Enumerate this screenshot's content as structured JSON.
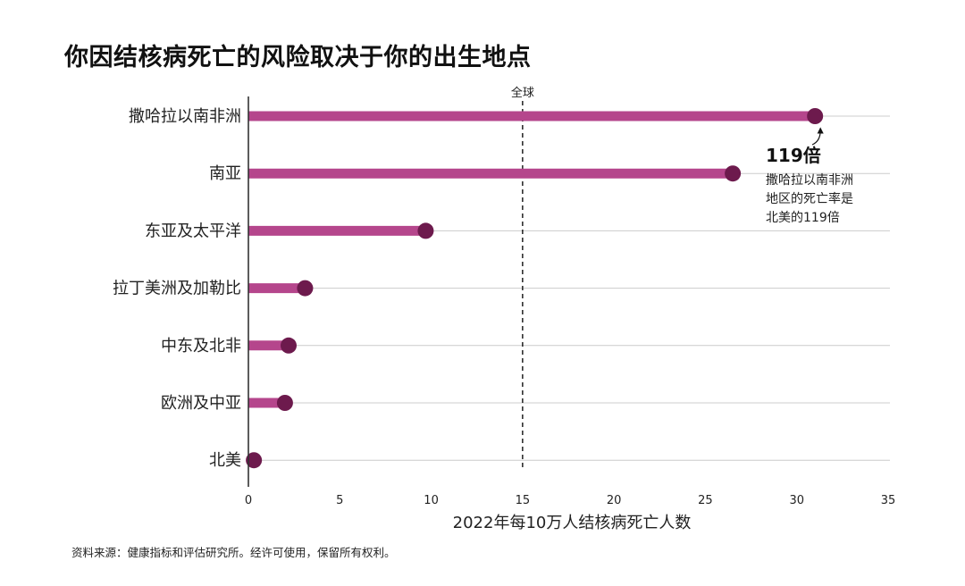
{
  "title": "你因结核病死亡的风险取决于你的出生地点",
  "source": "资料来源：健康指标和评估研究所。经许可使用，保留所有权利。",
  "colors": {
    "bar": "#b5468c",
    "dot": "#6d1a4d",
    "grid": "#cccccc",
    "axis": "#333333"
  },
  "chart_data": {
    "type": "bar",
    "orientation": "horizontal",
    "style": "lollipop",
    "categories": [
      "撒哈拉以南非洲",
      "南亚",
      "东亚及太平洋",
      "拉丁美洲及加勒比",
      "中东及北非",
      "欧洲及中亚",
      "北美"
    ],
    "values": [
      31,
      26.5,
      9.7,
      3.1,
      2.2,
      2.0,
      0.3
    ],
    "xlabel": "2022年每10万人结核病死亡人数",
    "xlim": [
      0,
      35
    ],
    "xticks": [
      0,
      5,
      10,
      15,
      20,
      25,
      30,
      35
    ],
    "grid": true,
    "reference_line": {
      "value": 15,
      "label": "全球"
    },
    "annotation": {
      "headline": "119倍",
      "lines": [
        "撒哈拉以南非洲",
        "地区的死亡率是",
        "北美的119倍"
      ]
    }
  }
}
